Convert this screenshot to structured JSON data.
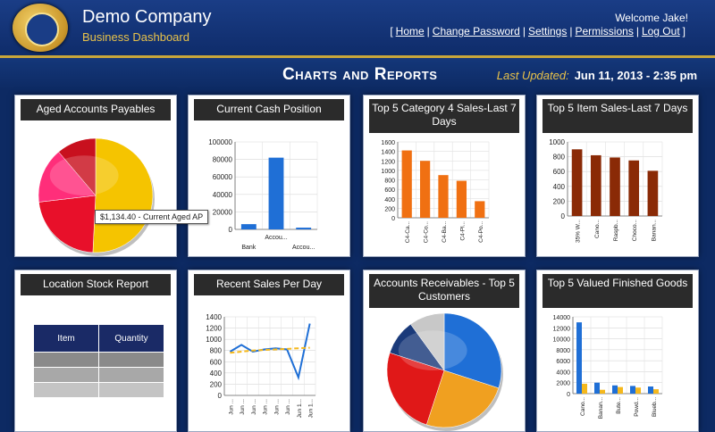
{
  "header": {
    "company_name": "Demo Company",
    "company_sub": "Business Dashboard",
    "welcome": "Welcome Jake!",
    "nav": [
      "Home",
      "Change Password",
      "Settings",
      "Permissions",
      "Log Out"
    ]
  },
  "page": {
    "title": "Charts and Reports",
    "last_updated_label": "Last Updated:",
    "last_updated_value": "Jun 11, 2013 - 2:35 pm"
  },
  "colors": {
    "orange": "#f07012",
    "dark_red": "#8a2a06",
    "blue": "#1f6fd6",
    "gold": "#f5b81c"
  },
  "panels": {
    "aged_ap": {
      "title": "Aged Accounts Payables",
      "tooltip": "$1,134.40 - Current Aged AP"
    },
    "cash": {
      "title": "Current Cash Position"
    },
    "cat4": {
      "title": "Top 5 Category 4 Sales-Last 7 Days"
    },
    "item": {
      "title": "Top 5 Item Sales-Last 7 Days"
    },
    "stock": {
      "title": "Location Stock Report",
      "headers": [
        "Item",
        "Quantity"
      ]
    },
    "sales_day": {
      "title": "Recent Sales Per Day"
    },
    "ar": {
      "title": "Accounts Receivables - Top 5 Customers"
    },
    "finished": {
      "title": "Top 5 Valued Finished Goods"
    }
  },
  "chart_data": [
    {
      "id": "aged_ap",
      "type": "pie",
      "values": [
        1134.4,
        500,
        350,
        250
      ],
      "colors": [
        "#f5c400",
        "#e8102a",
        "#ff2e7a",
        "#c8101e"
      ]
    },
    {
      "id": "cash",
      "type": "bar",
      "categories": [
        "Bank",
        "Accou...",
        "Accou..."
      ],
      "values": [
        6000,
        82000,
        2000
      ],
      "ylim": [
        0,
        100000
      ],
      "yticks": [
        "0",
        "20000",
        "40000",
        "60000",
        "80000",
        "100000"
      ]
    },
    {
      "id": "cat4",
      "type": "bar",
      "categories": [
        "C4-Ca...",
        "C4-Co...",
        "C4-Ba...",
        "C4-Pl...",
        "C4-Po..."
      ],
      "values": [
        1420,
        1200,
        900,
        780,
        350
      ],
      "ylim": [
        0,
        1600
      ],
      "yticks": [
        "0",
        "200",
        "400",
        "600",
        "800",
        "1000",
        "1200",
        "1400",
        "1600"
      ]
    },
    {
      "id": "item",
      "type": "bar",
      "categories": [
        "35% W...",
        "Cano...",
        "Raspb...",
        "Choco...",
        "Banan..."
      ],
      "values": [
        900,
        820,
        790,
        750,
        610
      ],
      "ylim": [
        0,
        1000
      ],
      "yticks": [
        "0",
        "200",
        "400",
        "600",
        "800",
        "1000"
      ]
    },
    {
      "id": "sales_day",
      "type": "line",
      "categories": [
        "Jun ...",
        "Jun ...",
        "Jun ...",
        "Jun ...",
        "Jun ...",
        "Jun ...",
        "Jun 1...",
        "Jun 1..."
      ],
      "series": [
        {
          "values": [
            780,
            900,
            780,
            820,
            840,
            820,
            320,
            1280
          ]
        },
        {
          "values": [
            760,
            780,
            800,
            810,
            820,
            830,
            840,
            850
          ]
        }
      ],
      "ylim": [
        0,
        1400
      ],
      "yticks": [
        "0",
        "200",
        "400",
        "600",
        "800",
        "1000",
        "1200",
        "1400"
      ]
    },
    {
      "id": "ar",
      "type": "pie",
      "values": [
        30,
        25,
        25,
        10,
        10
      ],
      "colors": [
        "#1f6fd6",
        "#f0a020",
        "#e01818",
        "#1a3a7a",
        "#c8c8c8"
      ]
    },
    {
      "id": "finished",
      "type": "bar",
      "categories": [
        "Cano...",
        "Banan...",
        "Bute...",
        "Powd...",
        "Blueb..."
      ],
      "series": [
        {
          "values": [
            13000,
            2000,
            1500,
            1400,
            1300
          ]
        },
        {
          "values": [
            1800,
            700,
            1200,
            1100,
            800
          ]
        }
      ],
      "ylim": [
        0,
        14000
      ],
      "yticks": [
        "0",
        "2000",
        "4000",
        "6000",
        "8000",
        "10000",
        "12000",
        "14000"
      ]
    }
  ]
}
